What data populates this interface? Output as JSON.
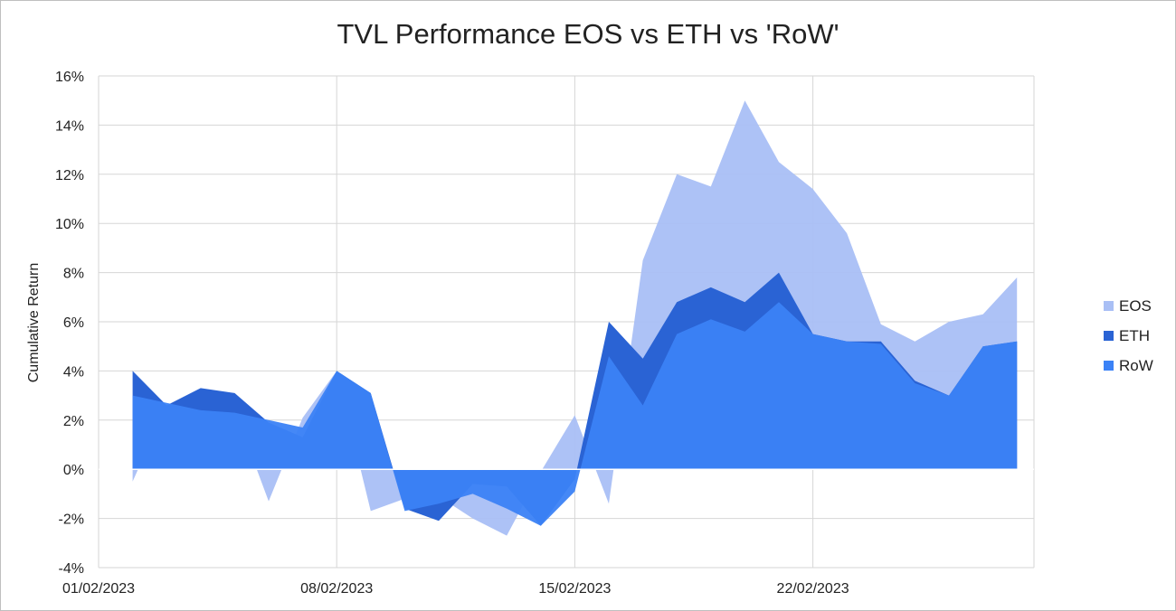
{
  "chart_data": {
    "type": "area",
    "title": "TVL Performance EOS vs ETH vs 'RoW'",
    "xlabel": "",
    "ylabel": "Cumulative Return",
    "ylim": [
      -4,
      16
    ],
    "ytick_step": 2,
    "ytick_suffix": "%",
    "grid": true,
    "legend_position": "right",
    "x": [
      "02/02/2023",
      "03/02/2023",
      "04/02/2023",
      "05/02/2023",
      "06/02/2023",
      "07/02/2023",
      "08/02/2023",
      "09/02/2023",
      "10/02/2023",
      "11/02/2023",
      "12/02/2023",
      "13/02/2023",
      "14/02/2023",
      "15/02/2023",
      "16/02/2023",
      "17/02/2023",
      "18/02/2023",
      "19/02/2023",
      "20/02/2023",
      "21/02/2023",
      "22/02/2023",
      "23/02/2023",
      "24/02/2023",
      "25/02/2023",
      "26/02/2023",
      "27/02/2023",
      "28/02/2023"
    ],
    "xtick_labels": [
      "01/02/2023",
      "08/02/2023",
      "15/02/2023",
      "22/02/2023"
    ],
    "series": [
      {
        "name": "EOS",
        "color": "#a9bff5",
        "values": [
          -0.5,
          2.6,
          3.1,
          2.4,
          -1.3,
          2.1,
          4.0,
          -1.7,
          -1.2,
          -1.1,
          -2.0,
          -2.7,
          -0.1,
          2.2,
          -1.4,
          8.5,
          12.0,
          11.5,
          15.0,
          12.5,
          11.4,
          9.6,
          5.9,
          5.2,
          6.0,
          6.3,
          7.8
        ]
      },
      {
        "name": "ETH",
        "color": "#2a63d4",
        "values": [
          4.0,
          2.6,
          3.3,
          3.1,
          1.9,
          1.3,
          4.0,
          3.1,
          -1.6,
          -2.1,
          -0.6,
          -0.7,
          -2.3,
          -0.4,
          6.0,
          4.5,
          6.8,
          7.4,
          6.8,
          8.0,
          5.5,
          5.2,
          5.2,
          3.6,
          3.0,
          5.0,
          5.2
        ]
      },
      {
        "name": "RoW",
        "color": "#3b82f6",
        "values": [
          3.0,
          2.7,
          2.4,
          2.3,
          2.0,
          1.7,
          4.0,
          3.1,
          -1.7,
          -1.4,
          -1.0,
          -1.6,
          -2.3,
          -0.9,
          4.6,
          2.6,
          5.5,
          6.1,
          5.6,
          6.8,
          5.5,
          5.2,
          5.1,
          3.5,
          3.0,
          5.0,
          5.2
        ]
      }
    ]
  }
}
